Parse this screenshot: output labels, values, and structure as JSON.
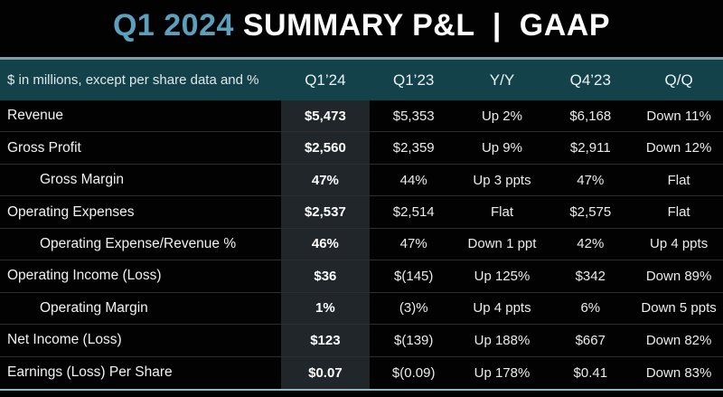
{
  "title": {
    "highlight": "Q1 2024",
    "rest": " SUMMARY P&L  |  GAAP"
  },
  "colors": {
    "background": "#020202",
    "title_accent": "#5ba1bd",
    "header_band": "#14424b",
    "header_top_edge": "#7f9da5",
    "column_highlight": "#20262a",
    "bottom_rule": "#8cb6c2",
    "row_separator": "#2e2e2e"
  },
  "table": {
    "header": {
      "units_label": "$ in millions, except per share data and %",
      "columns": [
        "Q1’24",
        "Q1’23",
        "Y/Y",
        "Q4’23",
        "Q/Q"
      ]
    },
    "rows": [
      {
        "label": "Revenue",
        "indent": false,
        "values": [
          "$5,473",
          "$5,353",
          "Up 2%",
          "$6,168",
          "Down 11%"
        ]
      },
      {
        "label": "Gross Profit",
        "indent": false,
        "values": [
          "$2,560",
          "$2,359",
          "Up 9%",
          "$2,911",
          "Down 12%"
        ]
      },
      {
        "label": "Gross Margin",
        "indent": true,
        "values": [
          "47%",
          "44%",
          "Up 3 ppts",
          "47%",
          "Flat"
        ]
      },
      {
        "label": "Operating Expenses",
        "indent": false,
        "values": [
          "$2,537",
          "$2,514",
          "Flat",
          "$2,575",
          "Flat"
        ]
      },
      {
        "label": "Operating Expense/Revenue %",
        "indent": true,
        "values": [
          "46%",
          "47%",
          "Down 1 ppt",
          "42%",
          "Up 4 ppts"
        ]
      },
      {
        "label": "Operating Income (Loss)",
        "indent": false,
        "values": [
          "$36",
          "$(145)",
          "Up 125%",
          "$342",
          "Down 89%"
        ]
      },
      {
        "label": "Operating Margin",
        "indent": true,
        "values": [
          "1%",
          "(3)%",
          "Up 4 ppts",
          "6%",
          "Down 5 ppts"
        ]
      },
      {
        "label": "Net Income (Loss)",
        "indent": false,
        "values": [
          "$123",
          "$(139)",
          "Up 188%",
          "$667",
          "Down 82%"
        ]
      },
      {
        "label": "Earnings (Loss) Per Share",
        "indent": false,
        "values": [
          "$0.07",
          "$(0.09)",
          "Up 178%",
          "$0.41",
          "Down 83%"
        ]
      }
    ]
  }
}
